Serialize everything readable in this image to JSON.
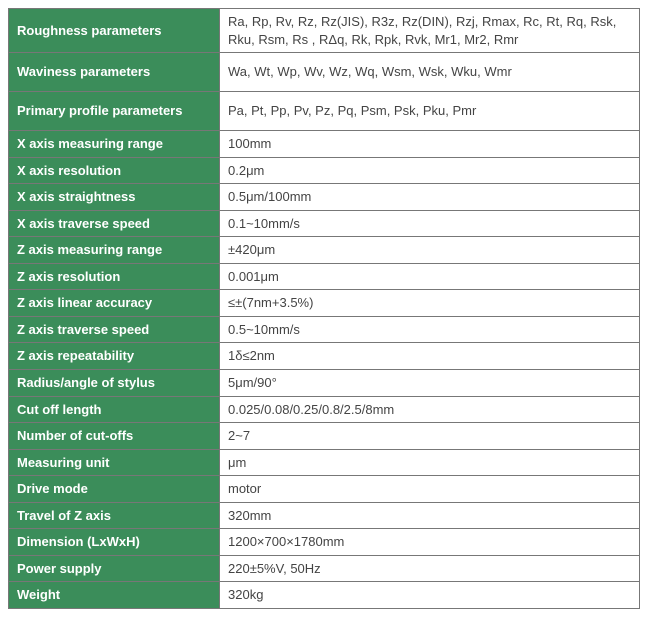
{
  "table": {
    "label_bg": "#3b8d5a",
    "border_color": "#777777",
    "value_text_color": "#444444",
    "rows": [
      {
        "label": "Roughness parameters",
        "value": "Ra, Rp, Rv, Rz, Rz(JIS), R3z, Rz(DIN), Rzj, Rmax, Rc, Rt, Rq, Rsk, Rku, Rsm, Rs , RΔq, Rk, Rpk, Rvk, Mr1, Mr2, Rmr",
        "tall": true
      },
      {
        "label": "Waviness parameters",
        "value": "Wa, Wt, Wp, Wv, Wz, Wq, Wsm, Wsk, Wku, Wmr",
        "tall": true
      },
      {
        "label": "Primary profile parameters",
        "value": "Pa, Pt, Pp, Pv, Pz, Pq, Psm, Psk, Pku, Pmr",
        "tall": true
      },
      {
        "label": "X axis measuring range",
        "value": "100mm"
      },
      {
        "label": "X axis resolution",
        "value": "0.2μm"
      },
      {
        "label": "X axis straightness",
        "value": "0.5μm/100mm"
      },
      {
        "label": "X axis traverse speed",
        "value": "0.1~10mm/s"
      },
      {
        "label": "Z axis measuring range",
        "value": "±420μm"
      },
      {
        "label": "Z axis resolution",
        "value": "0.001μm"
      },
      {
        "label": "Z axis linear accuracy",
        "value": "≤±(7nm+3.5%)"
      },
      {
        "label": "Z axis traverse speed",
        "value": "0.5~10mm/s"
      },
      {
        "label": "Z axis repeatability",
        "value": "1δ≤2nm"
      },
      {
        "label": "Radius/angle of stylus",
        "value": "5μm/90°"
      },
      {
        "label": "Cut off length",
        "value": "0.025/0.08/0.25/0.8/2.5/8mm"
      },
      {
        "label": "Number of cut-offs",
        "value": "2~7"
      },
      {
        "label": "Measuring unit",
        "value": "μm"
      },
      {
        "label": "Drive mode",
        "value": "motor"
      },
      {
        "label": "Travel of Z axis",
        "value": "320mm"
      },
      {
        "label": "Dimension (LxWxH)",
        "value": "1200×700×1780mm"
      },
      {
        "label": "Power supply",
        "value": "220±5%V, 50Hz"
      },
      {
        "label": "Weight",
        "value": "320kg"
      }
    ]
  }
}
